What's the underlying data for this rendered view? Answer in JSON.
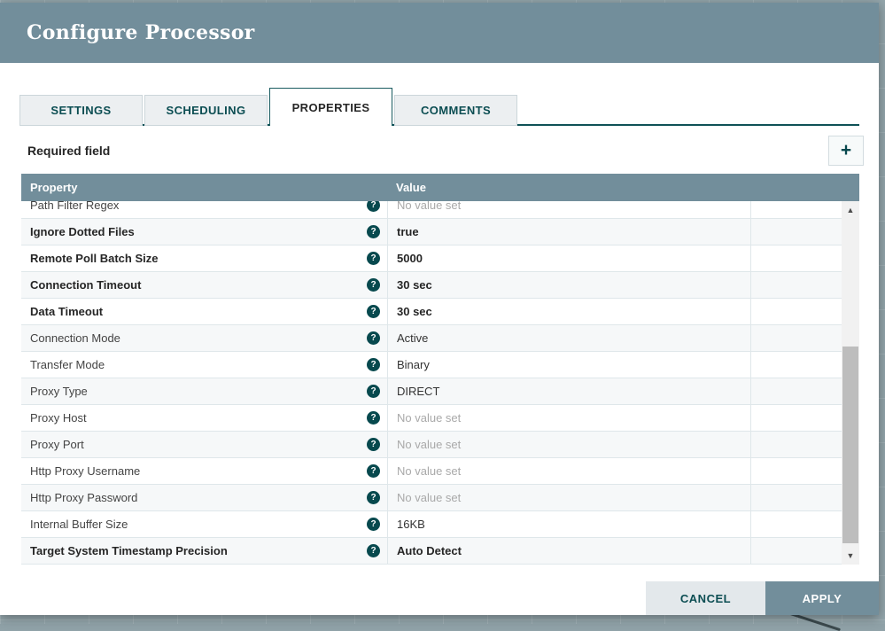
{
  "dialog": {
    "title": "Configure Processor",
    "tabs": [
      {
        "label": "SETTINGS",
        "active": false
      },
      {
        "label": "SCHEDULING",
        "active": false
      },
      {
        "label": "PROPERTIES",
        "active": true
      },
      {
        "label": "COMMENTS",
        "active": false
      }
    ],
    "required_field_label": "Required field",
    "table": {
      "property_header": "Property",
      "value_header": "Value",
      "unset_placeholder": "No value set",
      "rows": [
        {
          "property": "Path Filter Regex",
          "value": "No value set",
          "required": false,
          "unset": true
        },
        {
          "property": "Ignore Dotted Files",
          "value": "true",
          "required": true,
          "unset": false
        },
        {
          "property": "Remote Poll Batch Size",
          "value": "5000",
          "required": true,
          "unset": false
        },
        {
          "property": "Connection Timeout",
          "value": "30 sec",
          "required": true,
          "unset": false
        },
        {
          "property": "Data Timeout",
          "value": "30 sec",
          "required": true,
          "unset": false
        },
        {
          "property": "Connection Mode",
          "value": "Active",
          "required": false,
          "unset": false
        },
        {
          "property": "Transfer Mode",
          "value": "Binary",
          "required": false,
          "unset": false
        },
        {
          "property": "Proxy Type",
          "value": "DIRECT",
          "required": false,
          "unset": false
        },
        {
          "property": "Proxy Host",
          "value": "No value set",
          "required": false,
          "unset": true
        },
        {
          "property": "Proxy Port",
          "value": "No value set",
          "required": false,
          "unset": true
        },
        {
          "property": "Http Proxy Username",
          "value": "No value set",
          "required": false,
          "unset": true
        },
        {
          "property": "Http Proxy Password",
          "value": "No value set",
          "required": false,
          "unset": true
        },
        {
          "property": "Internal Buffer Size",
          "value": "16KB",
          "required": false,
          "unset": false
        },
        {
          "property": "Target System Timestamp Precision",
          "value": "Auto Detect",
          "required": true,
          "unset": false
        }
      ]
    },
    "footer": {
      "cancel_label": "CANCEL",
      "apply_label": "APPLY"
    },
    "icons": {
      "add": "+",
      "help": "?",
      "scroll_up": "▲",
      "scroll_down": "▼"
    },
    "colors": {
      "header_background": "#728e9b",
      "accent_teal": "#0b4d52",
      "table_header_background": "#728e9b",
      "apply_button_background": "#728e9b",
      "cancel_button_background": "#e3e8eb",
      "unset_value_text": "#a9a9a9",
      "canvas_background": "#93a5ab"
    }
  }
}
